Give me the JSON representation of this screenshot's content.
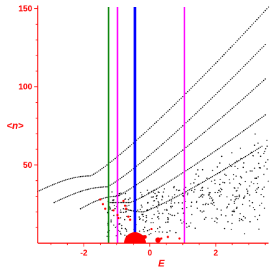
{
  "chart_data": {
    "type": "scatter",
    "xlabel": "E",
    "ylabel": "<n>",
    "xlim": [
      -3.4,
      3.6
    ],
    "ylim": [
      0,
      152
    ],
    "x_ticks": [
      -2,
      0,
      2
    ],
    "x_tick_labels": [
      "-2",
      "0",
      "2"
    ],
    "y_ticks": [
      50,
      100,
      150
    ],
    "y_tick_labels": [
      "50",
      "100",
      "150"
    ],
    "vertical_lines": [
      {
        "x": -1.25,
        "color": "#008000"
      },
      {
        "x": -0.98,
        "color": "#ff00ff"
      },
      {
        "x": -0.45,
        "color": "#0000ff"
      },
      {
        "x": 1.05,
        "color": "#ff00ff"
      }
    ],
    "bands": [
      {
        "x_start": -3.4,
        "x_end": 3.6,
        "y_start": 33,
        "y_end": 151,
        "peak_x": -1.8,
        "peak_y": 43
      },
      {
        "x_start": -2.9,
        "x_end": 3.5,
        "y_start": 26,
        "y_end": 127,
        "peak_x": -1.3,
        "peak_y": 36
      },
      {
        "x_start": -2.1,
        "x_end": 3.5,
        "y_start": 22,
        "y_end": 105,
        "peak_x": -1.0,
        "peak_y": 30
      },
      {
        "x_start": -1.2,
        "x_end": 3.5,
        "y_start": 26,
        "y_end": 82,
        "peak_x": -0.6,
        "peak_y": 26
      },
      {
        "x_start": -0.8,
        "x_end": 3.4,
        "y_start": 22,
        "y_end": 62,
        "peak_x": -0.2,
        "peak_y": 20
      }
    ],
    "red_points": [
      {
        "x": -1.5,
        "y": 28
      },
      {
        "x": -1.42,
        "y": 25
      },
      {
        "x": -1.35,
        "y": 22
      },
      {
        "x": -1.1,
        "y": 21
      },
      {
        "x": -0.98,
        "y": 18
      },
      {
        "x": -0.95,
        "y": 16
      },
      {
        "x": -0.8,
        "y": 27
      },
      {
        "x": -0.75,
        "y": 24
      },
      {
        "x": -0.72,
        "y": 22
      },
      {
        "x": -0.65,
        "y": 17
      },
      {
        "x": -0.6,
        "y": 15
      },
      {
        "x": 0.05,
        "y": 9
      },
      {
        "x": 0.35,
        "y": 3
      },
      {
        "x": 0.55,
        "y": 4
      },
      {
        "x": 0.9,
        "y": 3
      }
    ],
    "red_blobs": [
      {
        "x": -0.45,
        "y": 0,
        "r": 7
      },
      {
        "x": 0.25,
        "y": 2,
        "r": 2.2
      },
      {
        "x": -0.15,
        "y": 4,
        "r": 1.6
      }
    ],
    "grid": false,
    "colors": {
      "axis": "#ff0000",
      "points": "#000000",
      "highlight": "#ff0000"
    }
  }
}
